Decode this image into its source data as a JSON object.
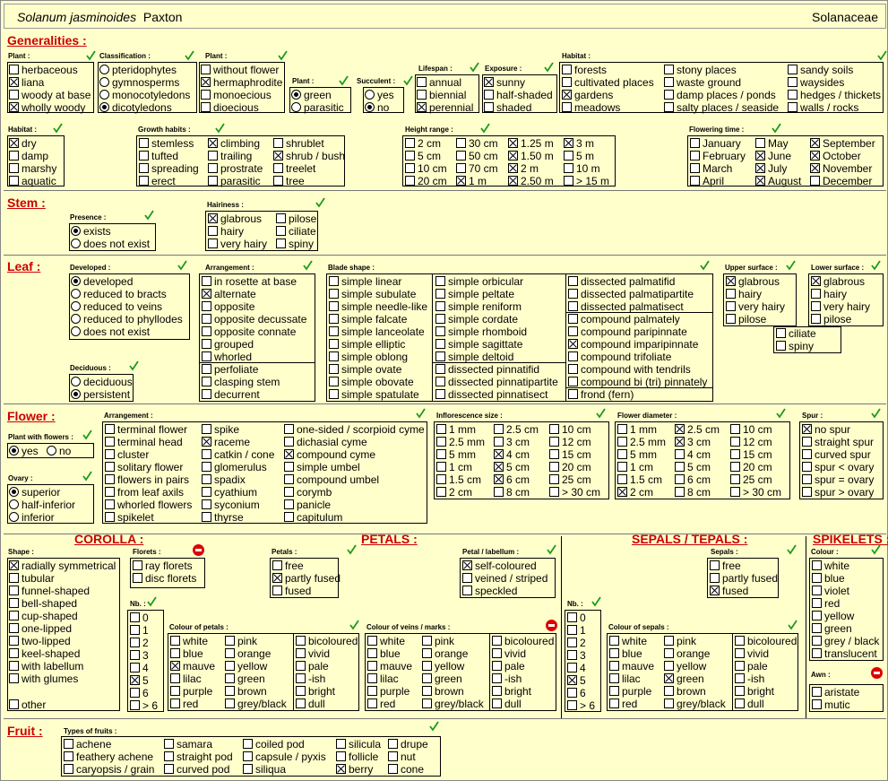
{
  "header": {
    "genus_species": "Solanum jasminoides",
    "author": "Paxton",
    "family": "Solanaceae"
  },
  "sections": {
    "generalities": "Generalities :",
    "stem": "Stem :",
    "leaf": "Leaf :",
    "flower": "Flower :",
    "fruit": "Fruit :"
  },
  "subsections": {
    "corolla": "COROLLA :",
    "petals": "PETALS :",
    "sepals": "SEPALS / TEPALS :",
    "spikelets": "SPIKELETS :"
  },
  "labels": {
    "plant1": "Plant :",
    "classification": "Classification :",
    "plant2": "Plant :",
    "plant3": "Plant :",
    "succulent": "Succulent :",
    "lifespan": "Lifespan :",
    "exposure": "Exposure :",
    "habitat1": "Habitat :",
    "habitat2": "Habitat :",
    "growth": "Growth habits :",
    "height": "Height range :",
    "flowering": "Flowering time :",
    "presence": "Presence :",
    "hairiness": "Hairiness :",
    "developed": "Developed :",
    "arrangement_leaf": "Arrangement :",
    "blade": "Blade shape :",
    "upper": "Upper surface :",
    "lower": "Lower surface :",
    "deciduous": "Deciduous :",
    "plant_with_flowers": "Plant with flowers :",
    "arrangement_flower": "Arrangement :",
    "infl_size": "Inflorescence size :",
    "flower_diam": "Flower diameter :",
    "spur": "Spur :",
    "ovary": "Ovary :",
    "shape": "Shape :",
    "florets": "Florets :",
    "petals": "Petals :",
    "petal_labellum": "Petal / labellum :",
    "sepals": "Sepals :",
    "colour": "Colour :",
    "nb1": "Nb. :",
    "nb2": "Nb. :",
    "col_petals": "Colour of petals :",
    "col_veins": "Colour of veins / marks :",
    "col_sepals": "Colour of sepals :",
    "awn": "Awn :",
    "fruit_types": "Types of fruits :"
  },
  "options": {
    "plant1": [
      "herbaceous",
      "liana",
      "woody at base",
      "wholly woody"
    ],
    "classification": [
      "pteridophytes",
      "gymnosperms",
      "monocotyledons",
      "dicotyledons"
    ],
    "plant2": [
      "without flower",
      "hermaphrodite",
      "monoecious",
      "dioecious"
    ],
    "plant3": [
      "green",
      "parasitic"
    ],
    "succulent": [
      "yes",
      "no"
    ],
    "lifespan": [
      "annual",
      "biennial",
      "perennial"
    ],
    "exposure": [
      "sunny",
      "half-shaded",
      "shaded"
    ],
    "habitat1_c1": [
      "forests",
      "cultivated places",
      "gardens",
      "meadows"
    ],
    "habitat1_c2": [
      "stony places",
      "waste ground",
      "damp places / ponds",
      "salty places / seaside"
    ],
    "habitat1_c3": [
      "sandy soils",
      "waysides",
      "hedges / thickets",
      "walls / rocks"
    ],
    "habitat2": [
      "dry",
      "damp",
      "marshy",
      "aquatic"
    ],
    "growth_c1": [
      "stemless",
      "tufted",
      "spreading",
      "erect"
    ],
    "growth_c2": [
      "climbing",
      "trailing",
      "prostrate",
      "parasitic"
    ],
    "growth_c3": [
      "shrublet",
      "shrub / bush",
      "treelet",
      "tree"
    ],
    "height_c1": [
      "2 cm",
      "5 cm",
      "10 cm",
      "20 cm"
    ],
    "height_c2": [
      "30 cm",
      "50 cm",
      "70 cm",
      "1 m"
    ],
    "height_c3": [
      "1.25 m",
      "1.50 m",
      "2 m",
      "2.50 m"
    ],
    "height_c4": [
      "3 m",
      "5 m",
      "10 m",
      "> 15 m"
    ],
    "flowering_c1": [
      "January",
      "February",
      "March",
      "April"
    ],
    "flowering_c2": [
      "May",
      "June",
      "July",
      "August"
    ],
    "flowering_c3": [
      "September",
      "October",
      "November",
      "December"
    ],
    "presence": [
      "exists",
      "does not exist"
    ],
    "hairiness_c1": [
      "glabrous",
      "hairy",
      "very hairy"
    ],
    "hairiness_c2": [
      "pilose",
      "ciliate",
      "spiny"
    ],
    "developed": [
      "developed",
      "reduced to bracts",
      "reduced to veins",
      "reduced to phyllodes",
      "does not exist"
    ],
    "deciduous": [
      "deciduous",
      "persistent"
    ],
    "arrangement_leaf": [
      "in rosette at base",
      "alternate",
      "opposite",
      "opposite decussate",
      "opposite connate",
      "grouped",
      "whorled"
    ],
    "arrangement_leaf2": [
      "perfoliate",
      "clasping stem",
      "decurrent"
    ],
    "blade_c1": [
      "simple linear",
      "simple subulate",
      "simple needle-like",
      "simple falcate",
      "simple lanceolate",
      "simple elliptic",
      "simple oblong",
      "simple ovate",
      "simple obovate",
      "simple spatulate"
    ],
    "blade_c2": [
      "simple orbicular",
      "simple peltate",
      "simple reniform",
      "simple cordate",
      "simple rhomboid",
      "simple sagittate",
      "simple deltoid"
    ],
    "blade_c2b": [
      "dissected pinnatifid",
      "dissected pinnatipartite",
      "dissected pinnatisect"
    ],
    "blade_c3": [
      "dissected palmatifid",
      "dissected palmatipartite",
      "dissected palmatisect"
    ],
    "blade_c3b": [
      "compound palmately",
      "compound paripinnate",
      "compound imparipinnate",
      "compound trifoliate",
      "compound with tendrils",
      "compound bi (tri) pinnately",
      "frond  (fern)"
    ],
    "upper": [
      "glabrous",
      "hairy",
      "very hairy",
      "pilose"
    ],
    "lower": [
      "glabrous",
      "hairy",
      "very hairy",
      "pilose"
    ],
    "surface_extra": [
      "ciliate",
      "spiny"
    ],
    "plant_with_flowers": [
      "yes",
      "no"
    ],
    "ovary": [
      "superior",
      "half-inferior",
      "inferior"
    ],
    "arr_flower_c1": [
      "terminal flower",
      "terminal head",
      "cluster",
      "solitary flower",
      "flowers in pairs",
      "from leaf axils",
      "whorled flowers",
      "spikelet"
    ],
    "arr_flower_c2": [
      "spike",
      "raceme",
      "catkin / cone",
      "glomerulus",
      "spadix",
      "cyathium",
      "syconium",
      "thyrse"
    ],
    "arr_flower_c3": [
      "one-sided / scorpioid cyme",
      "dichasial cyme",
      "compound cyme",
      "simple umbel",
      "compound umbel",
      "corymb",
      "panicle",
      "capitulum"
    ],
    "infl_c1": [
      "1 mm",
      "2.5 mm",
      "5 mm",
      "1 cm",
      "1.5 cm",
      "2 cm"
    ],
    "infl_c2": [
      "2.5 cm",
      "3 cm",
      "4 cm",
      "5 cm",
      "6 cm",
      "8 cm"
    ],
    "infl_c3": [
      "10 cm",
      "12 cm",
      "15 cm",
      "20 cm",
      "25 cm",
      "> 30 cm"
    ],
    "diam_c1": [
      "1 mm",
      "2.5 mm",
      "5 mm",
      "1 cm",
      "1.5 cm",
      "2 cm"
    ],
    "diam_c2": [
      "2.5 cm",
      "3 cm",
      "4 cm",
      "5 cm",
      "6 cm",
      "8 cm"
    ],
    "diam_c3": [
      "10 cm",
      "12 cm",
      "15 cm",
      "20 cm",
      "25 cm",
      "> 30 cm"
    ],
    "spur": [
      "no spur",
      "straight spur",
      "curved spur",
      "spur < ovary",
      "spur = ovary",
      "spur > ovary"
    ],
    "shape": [
      "radially symmetrical",
      "tubular",
      "funnel-shaped",
      "bell-shaped",
      "cup-shaped",
      "one-lipped",
      "two-lipped",
      "keel-shaped",
      "with labellum",
      "with glumes"
    ],
    "shape_other": "other",
    "florets": [
      "ray florets",
      "disc florets"
    ],
    "petals": [
      "free",
      "partly fused",
      "fused"
    ],
    "petal_labellum": [
      "self-coloured",
      "veined / striped",
      "speckled"
    ],
    "sepals": [
      "free",
      "partly fused",
      "fused"
    ],
    "spikelet_colour": [
      "white",
      "blue",
      "violet",
      "red",
      "yellow",
      "green",
      "grey / black",
      "translucent"
    ],
    "awn": [
      "aristate",
      "mutic"
    ],
    "nb": [
      "0",
      "1",
      "2",
      "3",
      "4",
      "5",
      "6",
      "> 6"
    ],
    "colour_c1": [
      "white",
      "blue",
      "mauve",
      "lilac",
      "purple",
      "red"
    ],
    "colour_c2": [
      "pink",
      "orange",
      "yellow",
      "green",
      "brown",
      "grey/black"
    ],
    "colour_c3": [
      "bicoloured",
      "vivid",
      "pale",
      "-ish",
      "bright",
      "dull"
    ],
    "fruit_c1": [
      "achene",
      "feathery achene",
      "caryopsis / grain"
    ],
    "fruit_c2": [
      "samara",
      "straight pod",
      "curved pod"
    ],
    "fruit_c3": [
      "coiled pod",
      "capsule / pyxis",
      "siliqua"
    ],
    "fruit_c4": [
      "silicula",
      "follicle",
      "berry"
    ],
    "fruit_c5": [
      "drupe",
      "nut",
      "cone"
    ]
  },
  "selected": {
    "plant1": [
      "liana",
      "wholly woody"
    ],
    "classification": [
      "dicotyledons"
    ],
    "plant2": [
      "hermaphrodite"
    ],
    "plant3": [
      "green"
    ],
    "succulent": [
      "no"
    ],
    "lifespan": [
      "perennial"
    ],
    "exposure": [
      "sunny"
    ],
    "habitat1": [
      "gardens"
    ],
    "habitat2": [
      "dry"
    ],
    "growth": [
      "climbing",
      "shrub / bush"
    ],
    "height": [
      "1.25 m",
      "1.50 m",
      "2 m",
      "2.50 m",
      "1 m",
      "3 m"
    ],
    "flowering": [
      "June",
      "July",
      "August",
      "September",
      "October",
      "November"
    ],
    "presence": [
      "exists"
    ],
    "hairiness": [
      "glabrous"
    ],
    "developed": [
      "developed"
    ],
    "deciduous": [
      "persistent"
    ],
    "arrangement_leaf": [
      "alternate"
    ],
    "blade": [
      "compound imparipinnate"
    ],
    "upper": [
      "glabrous"
    ],
    "lower": [
      "glabrous"
    ],
    "plant_with_flowers": [
      "yes"
    ],
    "ovary": [
      "superior"
    ],
    "arr_flower": [
      "raceme",
      "compound cyme"
    ],
    "infl": [
      "4 cm",
      "5 cm",
      "6 cm"
    ],
    "diam": [
      "2 cm",
      "2.5 cm",
      "3 cm"
    ],
    "spur": [
      "no spur"
    ],
    "shape": [
      "radially symmetrical"
    ],
    "petals": [
      "partly fused"
    ],
    "petal_labellum": [
      "self-coloured"
    ],
    "sepals": [
      "fused"
    ],
    "nb1": [
      "5"
    ],
    "nb2": [
      "5"
    ],
    "col_petals": [
      "mauve"
    ],
    "col_sepals": [
      "green"
    ],
    "fruit": [
      "berry"
    ]
  }
}
